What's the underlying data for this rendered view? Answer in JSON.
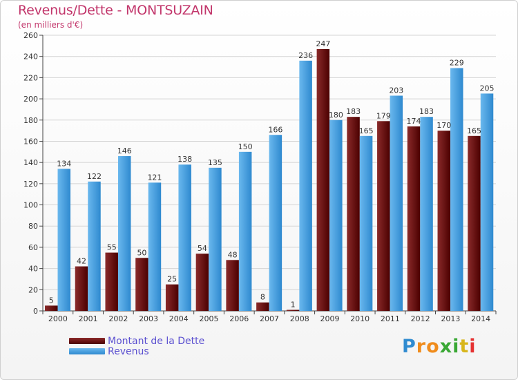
{
  "header": {
    "title": "Revenus/Dette - MONTSUZAIN",
    "subtitle": "(en milliers d'€)"
  },
  "legend": {
    "dette_label": "Montant de la Dette",
    "revenus_label": "Revenus"
  },
  "logo": {
    "text": "Proxiti",
    "letters": [
      "P",
      "r",
      "o",
      "x",
      "i",
      "t",
      "i"
    ],
    "colors": [
      "#2f8bd0",
      "#f08c1c",
      "#f08c1c",
      "#3aa835",
      "#3aa835",
      "#d8b61c",
      "#e53131"
    ]
  },
  "colors": {
    "dette_top": "#8a2a2a",
    "dette_bottom": "#4b0000",
    "revenus_top": "#6ab8ee",
    "revenus_bottom": "#2e89cf",
    "title": "#c2366b",
    "legend_text": "#5a4fd0",
    "grid": "#d4d4d4"
  },
  "chart_data": {
    "type": "bar",
    "title": "Revenus/Dette - MONTSUZAIN",
    "ylabel": "(en milliers d'€)",
    "xlabel": "",
    "ylim": [
      0,
      260
    ],
    "ytick_step": 20,
    "grid": true,
    "categories": [
      "2000",
      "2001",
      "2002",
      "2003",
      "2004",
      "2005",
      "2006",
      "2007",
      "2008",
      "2009",
      "2010",
      "2011",
      "2012",
      "2013",
      "2014"
    ],
    "series": [
      {
        "name": "Montant de la Dette",
        "values": [
          5,
          42,
          55,
          50,
          25,
          54,
          48,
          8,
          1,
          247,
          183,
          179,
          174,
          170,
          165
        ]
      },
      {
        "name": "Revenus",
        "values": [
          134,
          122,
          146,
          121,
          138,
          135,
          150,
          166,
          236,
          180,
          165,
          203,
          183,
          229,
          205
        ]
      }
    ]
  }
}
